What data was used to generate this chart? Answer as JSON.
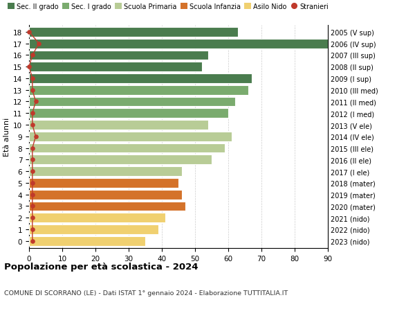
{
  "ages": [
    18,
    17,
    16,
    15,
    14,
    13,
    12,
    11,
    10,
    9,
    8,
    7,
    6,
    5,
    4,
    3,
    2,
    1,
    0
  ],
  "years": [
    "2005 (V sup)",
    "2006 (IV sup)",
    "2007 (III sup)",
    "2008 (II sup)",
    "2009 (I sup)",
    "2010 (III med)",
    "2011 (II med)",
    "2012 (I med)",
    "2013 (V ele)",
    "2014 (IV ele)",
    "2015 (III ele)",
    "2016 (II ele)",
    "2017 (I ele)",
    "2018 (mater)",
    "2019 (mater)",
    "2020 (mater)",
    "2021 (nido)",
    "2022 (nido)",
    "2023 (nido)"
  ],
  "values": [
    63,
    90,
    54,
    52,
    67,
    66,
    62,
    60,
    54,
    61,
    59,
    55,
    46,
    45,
    46,
    47,
    41,
    39,
    35
  ],
  "stranieri": [
    0,
    3,
    1,
    0,
    1,
    1,
    2,
    1,
    1,
    2,
    1,
    1,
    1,
    1,
    1,
    1,
    1,
    1,
    1
  ],
  "colors": {
    "sec2": "#4a7c4e",
    "sec1": "#7aab6e",
    "primaria": "#b8cc96",
    "infanzia": "#d4722a",
    "nido": "#f0d070",
    "stranieri_dot": "#c0392b",
    "stranieri_line": "#c0392b"
  },
  "category_colors": [
    "sec2",
    "sec2",
    "sec2",
    "sec2",
    "sec2",
    "sec1",
    "sec1",
    "sec1",
    "primaria",
    "primaria",
    "primaria",
    "primaria",
    "primaria",
    "infanzia",
    "infanzia",
    "infanzia",
    "nido",
    "nido",
    "nido"
  ],
  "legend_labels": [
    "Sec. II grado",
    "Sec. I grado",
    "Scuola Primaria",
    "Scuola Infanzia",
    "Asilo Nido",
    "Stranieri"
  ],
  "legend_colors": [
    "#4a7c4e",
    "#7aab6e",
    "#b8cc96",
    "#d4722a",
    "#f0d070",
    "#c0392b"
  ],
  "title": "Popolazione per età scolastica - 2024",
  "subtitle": "COMUNE DI SCORRANO (LE) - Dati ISTAT 1° gennaio 2024 - Elaborazione TUTTITALIA.IT",
  "ylabel_left": "Età alunni",
  "xlim": [
    0,
    90
  ],
  "xticks": [
    0,
    10,
    20,
    30,
    40,
    50,
    60,
    70,
    80,
    90
  ],
  "background_color": "#ffffff",
  "bar_height": 0.82
}
